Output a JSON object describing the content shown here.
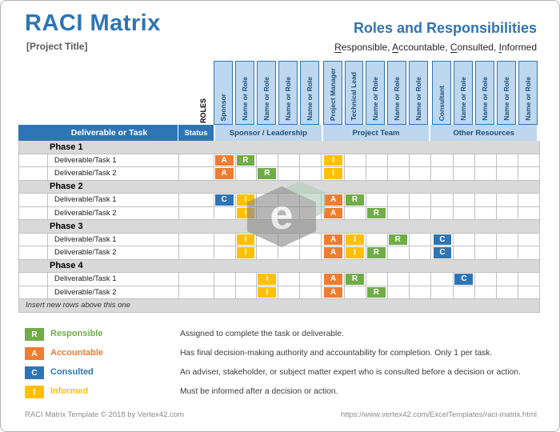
{
  "page": {
    "title": "RACI Matrix",
    "project_title": "[Project Title]",
    "right_title": "Roles and Responsibilities",
    "raci_words": [
      {
        "initial": "R",
        "rest": "esponsible, "
      },
      {
        "initial": "A",
        "rest": "ccountable, "
      },
      {
        "initial": "C",
        "rest": "onsulted, "
      },
      {
        "initial": "I",
        "rest": "nformed"
      }
    ]
  },
  "colors": {
    "R": "#70AD47",
    "A": "#ED7D31",
    "C": "#2E75B6",
    "I": "#FFC000",
    "header_blue": "#2E75B6",
    "group_fill": "#BDD7EE",
    "group_text": "#1F4E79",
    "phase_gray": "#D9D9D9"
  },
  "table": {
    "roles_label": "ROLES",
    "corner_header": "Deliverable or Task",
    "status_header": "Status",
    "groups": [
      "Sponsor / Leadership",
      "Project Team",
      "Other Resources"
    ],
    "columns": [
      "Sponsor",
      "Name or Role",
      "Name or Role",
      "Name or Role",
      "Name or Role",
      "Project Manager",
      "Technical Lead",
      "Name or Role",
      "Name or Role",
      "Name or Role",
      "Consultant",
      "Name or Role",
      "Name or Role",
      "Name or Role",
      "Name or Role"
    ],
    "rows": [
      {
        "type": "phase",
        "label": "Phase 1"
      },
      {
        "type": "task",
        "label": "Deliverable/Task 1",
        "cells": {
          "1": "A",
          "2": "R",
          "6": "I"
        }
      },
      {
        "type": "task",
        "label": "Deliverable/Task 2",
        "cells": {
          "1": "A",
          "3": "R",
          "6": "I"
        }
      },
      {
        "type": "phase",
        "label": "Phase 2"
      },
      {
        "type": "task",
        "label": "Deliverable/Task 1",
        "cells": {
          "1": "C",
          "2": "I",
          "6": "A",
          "7": "R"
        }
      },
      {
        "type": "task",
        "label": "Deliverable/Task 2",
        "cells": {
          "2": "I",
          "6": "A",
          "8": "R"
        }
      },
      {
        "type": "phase",
        "label": "Phase 3"
      },
      {
        "type": "task",
        "label": "Deliverable/Task 1",
        "cells": {
          "2": "I",
          "6": "A",
          "7": "I",
          "9": "R",
          "11": "C"
        }
      },
      {
        "type": "task",
        "label": "Deliverable/Task 2",
        "cells": {
          "2": "I",
          "6": "A",
          "7": "I",
          "8": "R",
          "11": "C"
        }
      },
      {
        "type": "phase",
        "label": "Phase 4"
      },
      {
        "type": "task",
        "label": "Deliverable/Task 1",
        "cells": {
          "3": "I",
          "6": "A",
          "7": "R",
          "12": "C"
        }
      },
      {
        "type": "task",
        "label": "Deliverable/Task 2",
        "cells": {
          "3": "I",
          "6": "A",
          "8": "R"
        }
      },
      {
        "type": "note",
        "label": "Insert new rows above this one"
      }
    ]
  },
  "legend": [
    {
      "letter": "R",
      "label": "Responsible",
      "desc": "Assigned to complete the task or deliverable."
    },
    {
      "letter": "A",
      "label": "Accountable",
      "desc": "Has final decision-making authority and accountability for completion. Only 1 per task."
    },
    {
      "letter": "C",
      "label": "Consulted",
      "desc": "An adviser, stakeholder, or subject matter expert who is consulted before a decision or action."
    },
    {
      "letter": "I",
      "label": "Informed",
      "desc": "Must be informed after a decision or action."
    }
  ],
  "watermark": {
    "letter": "e"
  },
  "footer": {
    "left": "RACI Matrix Template © 2018 by Vertex42.com",
    "right": "https://www.vertex42.com/ExcelTemplates/raci-matrix.html"
  }
}
